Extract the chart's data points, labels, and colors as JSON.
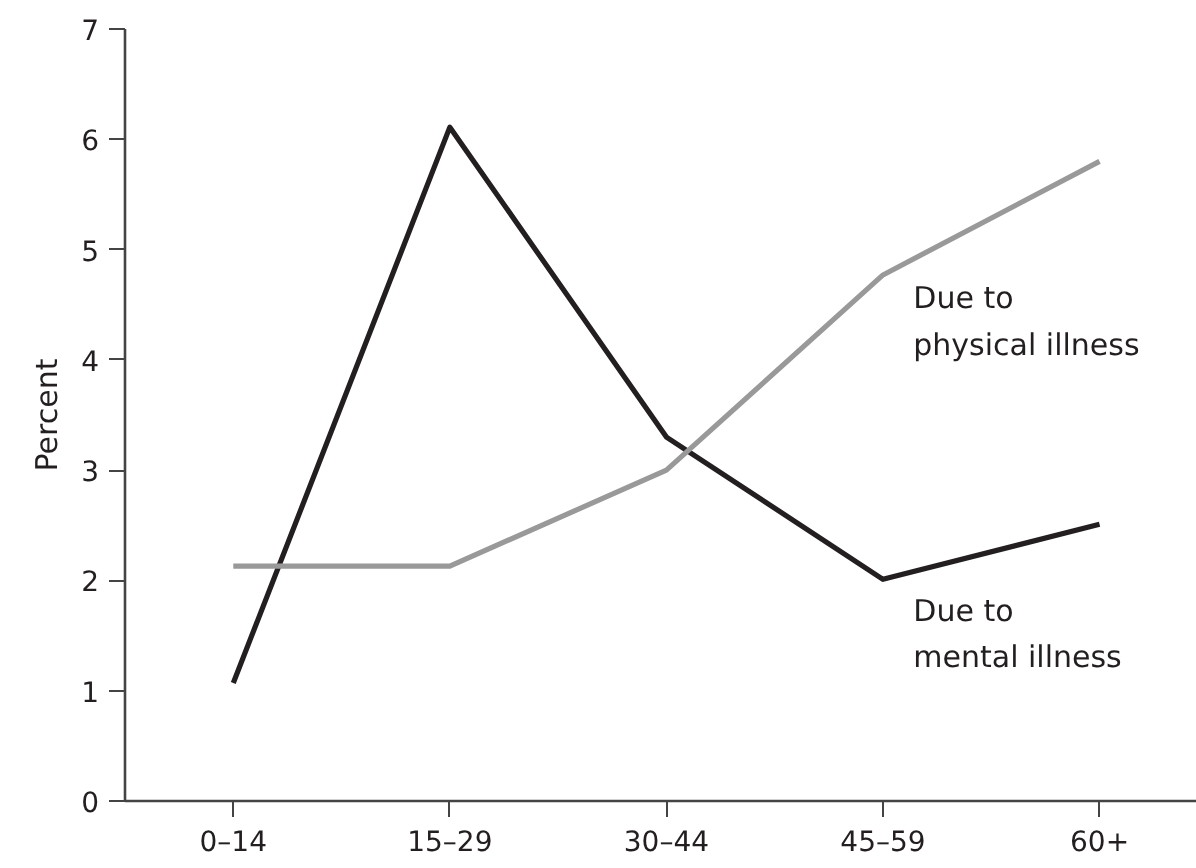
{
  "chart_data": {
    "type": "line",
    "ylabel": "Percent",
    "categories": [
      "0–14",
      "15–29",
      "30–44",
      "45–59",
      "60+"
    ],
    "series": [
      {
        "name": "Due to\nmental illness",
        "color": "#231f20",
        "values": [
          1.07,
          6.11,
          3.3,
          2.01,
          2.51
        ]
      },
      {
        "name": "Due to\nphysical illness",
        "color": "#999999",
        "values": [
          2.13,
          2.13,
          3.0,
          4.77,
          5.8
        ]
      }
    ],
    "ylim": [
      0,
      7
    ],
    "yticks": [
      0,
      1,
      2,
      3,
      4,
      5,
      6,
      7
    ],
    "grid": false,
    "marker": "none",
    "line_style": "solid"
  }
}
